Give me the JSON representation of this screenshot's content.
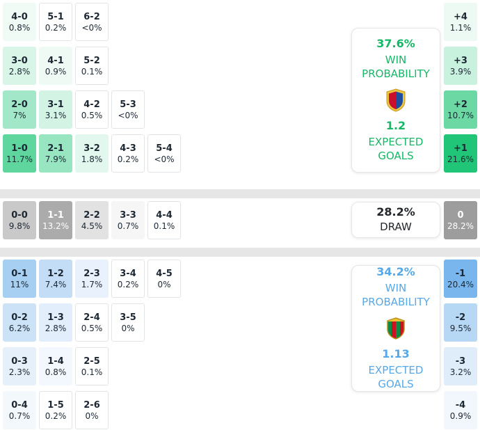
{
  "colors": {
    "home_accent": "#14b866",
    "away_accent": "#56a8e8",
    "draw_text": "#23262b",
    "divider": "#e6e6e6",
    "cell_text": "#1c2733"
  },
  "sections": [
    {
      "id": "home",
      "rows": [
        [
          {
            "s": "4-0",
            "p": "0.8%",
            "bg": "#f1fbf6"
          },
          {
            "s": "5-1",
            "p": "0.2%",
            "bg": "#ffffff"
          },
          {
            "s": "6-2",
            "p": "<0%",
            "bg": "#ffffff"
          }
        ],
        [
          {
            "s": "3-0",
            "p": "2.8%",
            "bg": "#d8f5e7"
          },
          {
            "s": "4-1",
            "p": "0.9%",
            "bg": "#effaf5"
          },
          {
            "s": "5-2",
            "p": "0.1%",
            "bg": "#ffffff"
          }
        ],
        [
          {
            "s": "2-0",
            "p": "7%",
            "bg": "#a2e8c8"
          },
          {
            "s": "3-1",
            "p": "3.1%",
            "bg": "#d3f3e4"
          },
          {
            "s": "4-2",
            "p": "0.5%",
            "bg": "#ffffff"
          },
          {
            "s": "5-3",
            "p": "<0%",
            "bg": "#ffffff"
          }
        ],
        [
          {
            "s": "1-0",
            "p": "11.7%",
            "bg": "#5fd69d"
          },
          {
            "s": "2-1",
            "p": "7.9%",
            "bg": "#98e5c1"
          },
          {
            "s": "3-2",
            "p": "1.8%",
            "bg": "#e2f8ee"
          },
          {
            "s": "4-3",
            "p": "0.2%",
            "bg": "#ffffff"
          },
          {
            "s": "5-4",
            "p": "<0%",
            "bg": "#ffffff"
          }
        ]
      ],
      "diff": [
        {
          "s": "+4",
          "p": "1.1%",
          "bg": "#ecfaf3"
        },
        {
          "s": "+3",
          "p": "3.9%",
          "bg": "#c8f1de"
        },
        {
          "s": "+2",
          "p": "10.7%",
          "bg": "#6cd9a5"
        },
        {
          "s": "+1",
          "p": "21.6%",
          "bg": "#21c578"
        }
      ],
      "card": {
        "pct": "37.6%",
        "label_lines": [
          "WIN",
          "PROBABILITY"
        ],
        "xg": "1.2",
        "xg_lines": [
          "EXPECTED",
          "GOALS"
        ]
      }
    },
    {
      "id": "draw",
      "rows": [
        [
          {
            "s": "0-0",
            "p": "9.8%",
            "bg": "#c9c9c9"
          },
          {
            "s": "1-1",
            "p": "13.2%",
            "bg": "#ababab",
            "fg": "#ffffff"
          },
          {
            "s": "2-2",
            "p": "4.5%",
            "bg": "#e2e2e2"
          },
          {
            "s": "3-3",
            "p": "0.7%",
            "bg": "#f6f6f6"
          },
          {
            "s": "4-4",
            "p": "0.1%",
            "bg": "#ffffff"
          }
        ]
      ],
      "diff": [
        {
          "s": "0",
          "p": "28.2%",
          "bg": "#9d9d9d",
          "fg": "#ffffff"
        }
      ],
      "card": {
        "pct": "28.2%",
        "label_lines": [
          "DRAW"
        ]
      }
    },
    {
      "id": "away",
      "rows": [
        [
          {
            "s": "0-1",
            "p": "11%",
            "bg": "#a6cff2"
          },
          {
            "s": "1-2",
            "p": "7.4%",
            "bg": "#c3ddf6"
          },
          {
            "s": "2-3",
            "p": "1.7%",
            "bg": "#e9f2fc"
          },
          {
            "s": "3-4",
            "p": "0.2%",
            "bg": "#ffffff"
          },
          {
            "s": "4-5",
            "p": "0%",
            "bg": "#ffffff"
          }
        ],
        [
          {
            "s": "0-2",
            "p": "6.2%",
            "bg": "#cbe2f7"
          },
          {
            "s": "1-3",
            "p": "2.8%",
            "bg": "#e2eefb"
          },
          {
            "s": "2-4",
            "p": "0.5%",
            "bg": "#ffffff"
          },
          {
            "s": "3-5",
            "p": "0%",
            "bg": "#ffffff"
          }
        ],
        [
          {
            "s": "0-3",
            "p": "2.3%",
            "bg": "#e6f0fb"
          },
          {
            "s": "1-4",
            "p": "0.8%",
            "bg": "#f2f8fd"
          },
          {
            "s": "2-5",
            "p": "0.1%",
            "bg": "#ffffff"
          }
        ],
        [
          {
            "s": "0-4",
            "p": "0.7%",
            "bg": "#f3f8fd"
          },
          {
            "s": "1-5",
            "p": "0.2%",
            "bg": "#ffffff"
          },
          {
            "s": "2-6",
            "p": "0%",
            "bg": "#ffffff"
          }
        ]
      ],
      "diff": [
        {
          "s": "-1",
          "p": "20.4%",
          "bg": "#79b6ee"
        },
        {
          "s": "-2",
          "p": "9.5%",
          "bg": "#b7d8f5"
        },
        {
          "s": "-3",
          "p": "3.2%",
          "bg": "#dfecfa"
        },
        {
          "s": "-4",
          "p": "0.9%",
          "bg": "#f1f7fd"
        }
      ],
      "card": {
        "pct": "34.2%",
        "label_lines": [
          "WIN",
          "PROBABILITY"
        ],
        "xg": "1.13",
        "xg_lines": [
          "EXPECTED",
          "GOALS"
        ]
      }
    }
  ],
  "chart_data": {
    "type": "heatmap",
    "description": "Correct score probability matrix with win probability and expected goals per team",
    "home_win": {
      "probability_pct": 37.6,
      "expected_goals": 1.2,
      "scores": [
        [
          "4-0",
          "0.8%"
        ],
        [
          "5-1",
          "0.2%"
        ],
        [
          "6-2",
          "<0%"
        ],
        [
          "3-0",
          "2.8%"
        ],
        [
          "4-1",
          "0.9%"
        ],
        [
          "5-2",
          "0.1%"
        ],
        [
          "2-0",
          "7%"
        ],
        [
          "3-1",
          "3.1%"
        ],
        [
          "4-2",
          "0.5%"
        ],
        [
          "5-3",
          "<0%"
        ],
        [
          "1-0",
          "11.7%"
        ],
        [
          "2-1",
          "7.9%"
        ],
        [
          "3-2",
          "1.8%"
        ],
        [
          "4-3",
          "0.2%"
        ],
        [
          "5-4",
          "<0%"
        ]
      ],
      "goal_difference": [
        [
          "+4",
          "1.1%"
        ],
        [
          "+3",
          "3.9%"
        ],
        [
          "+2",
          "10.7%"
        ],
        [
          "+1",
          "21.6%"
        ]
      ]
    },
    "draw": {
      "probability_pct": 28.2,
      "scores": [
        [
          "0-0",
          "9.8%"
        ],
        [
          "1-1",
          "13.2%"
        ],
        [
          "2-2",
          "4.5%"
        ],
        [
          "3-3",
          "0.7%"
        ],
        [
          "4-4",
          "0.1%"
        ]
      ],
      "goal_difference": [
        [
          "0",
          "28.2%"
        ]
      ]
    },
    "away_win": {
      "probability_pct": 34.2,
      "expected_goals": 1.13,
      "scores": [
        [
          "0-1",
          "11%"
        ],
        [
          "1-2",
          "7.4%"
        ],
        [
          "2-3",
          "1.7%"
        ],
        [
          "3-4",
          "0.2%"
        ],
        [
          "4-5",
          "0%"
        ],
        [
          "0-2",
          "6.2%"
        ],
        [
          "1-3",
          "2.8%"
        ],
        [
          "2-4",
          "0.5%"
        ],
        [
          "3-5",
          "0%"
        ],
        [
          "0-3",
          "2.3%"
        ],
        [
          "1-4",
          "0.8%"
        ],
        [
          "2-5",
          "0.1%"
        ],
        [
          "0-4",
          "0.7%"
        ],
        [
          "1-5",
          "0.2%"
        ],
        [
          "2-6",
          "0%"
        ]
      ],
      "goal_difference": [
        [
          "-1",
          "20.4%"
        ],
        [
          "-2",
          "9.5%"
        ],
        [
          "-3",
          "3.2%"
        ],
        [
          "-4",
          "0.9%"
        ]
      ]
    }
  }
}
